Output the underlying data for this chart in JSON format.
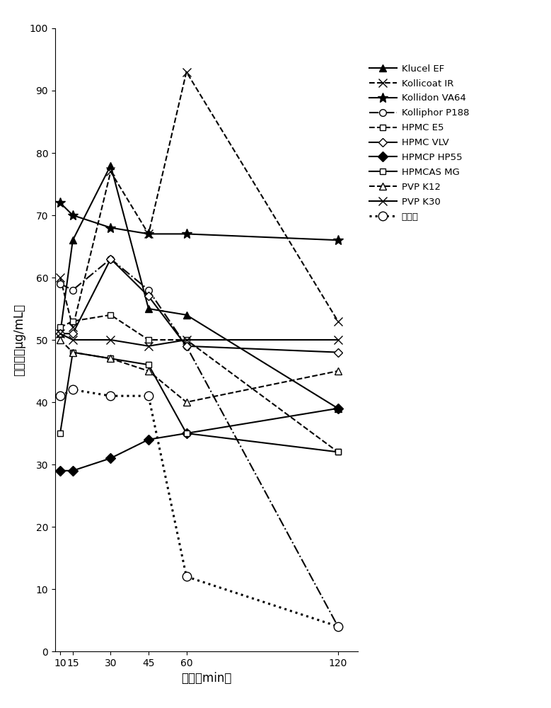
{
  "x": [
    10,
    15,
    30,
    45,
    60,
    120
  ],
  "series": [
    {
      "label": "Klucel EF",
      "values": [
        51,
        66,
        78,
        55,
        54,
        39
      ],
      "color": "#000000",
      "linestyle": "-",
      "marker": "^",
      "markersize": 7,
      "linewidth": 1.5,
      "markerfacecolor": "#000000"
    },
    {
      "label": "Kollicoat IR",
      "values": [
        60,
        52,
        77,
        67,
        93,
        53
      ],
      "color": "#000000",
      "linestyle": "--",
      "marker": "x",
      "markersize": 8,
      "linewidth": 1.5,
      "markerfacecolor": "#000000"
    },
    {
      "label": "Kollidon VA64",
      "values": [
        72,
        70,
        68,
        67,
        67,
        66
      ],
      "color": "#000000",
      "linestyle": "-",
      "marker": "*",
      "markersize": 10,
      "linewidth": 1.5,
      "markerfacecolor": "#000000"
    },
    {
      "label": "Kolliphor P188",
      "values": [
        59,
        58,
        63,
        58,
        49,
        4
      ],
      "color": "#000000",
      "linestyle": "-.",
      "marker": "o",
      "markersize": 7,
      "linewidth": 1.5,
      "markerfacecolor": "white"
    },
    {
      "label": "HPMC E5",
      "values": [
        52,
        53,
        54,
        50,
        50,
        32
      ],
      "color": "#000000",
      "linestyle": "--",
      "marker": "s",
      "markersize": 6,
      "linewidth": 1.5,
      "markerfacecolor": "white"
    },
    {
      "label": "HPMC VLV",
      "values": [
        51,
        51,
        63,
        57,
        49,
        48
      ],
      "color": "#000000",
      "linestyle": "-",
      "marker": "D",
      "markersize": 6,
      "linewidth": 1.5,
      "markerfacecolor": "white"
    },
    {
      "label": "HPMCP HP55",
      "values": [
        29,
        29,
        31,
        34,
        35,
        39
      ],
      "color": "#000000",
      "linestyle": "-",
      "marker": "D",
      "markersize": 7,
      "linewidth": 1.5,
      "markerfacecolor": "#000000"
    },
    {
      "label": "HPMCAS MG",
      "values": [
        35,
        48,
        47,
        46,
        35,
        32
      ],
      "color": "#000000",
      "linestyle": "-",
      "marker": "s",
      "markersize": 6,
      "linewidth": 1.5,
      "markerfacecolor": "white"
    },
    {
      "label": "PVP K12",
      "values": [
        50,
        48,
        47,
        45,
        40,
        45
      ],
      "color": "#000000",
      "linestyle": "--",
      "marker": "^",
      "markersize": 7,
      "linewidth": 1.5,
      "markerfacecolor": "white"
    },
    {
      "label": "PVP K30",
      "values": [
        51,
        50,
        50,
        49,
        50,
        50
      ],
      "color": "#000000",
      "linestyle": "-",
      "marker": "x",
      "markersize": 8,
      "linewidth": 1.5,
      "markerfacecolor": "#000000"
    },
    {
      "label": "对照组",
      "values": [
        41,
        42,
        41,
        41,
        12,
        4
      ],
      "color": "#000000",
      "linestyle": ":",
      "marker": "o",
      "markersize": 9,
      "linewidth": 2.2,
      "markerfacecolor": "white"
    }
  ],
  "xlabel": "时间（min）",
  "ylabel": "溶解度（μg/mL）",
  "ylim": [
    0,
    100
  ],
  "xticks": [
    10,
    15,
    30,
    45,
    60,
    120
  ],
  "yticks": [
    0,
    10,
    20,
    30,
    40,
    50,
    60,
    70,
    80,
    90,
    100
  ],
  "legend_fontsize": 9.5,
  "axis_fontsize": 12,
  "tick_fontsize": 10
}
